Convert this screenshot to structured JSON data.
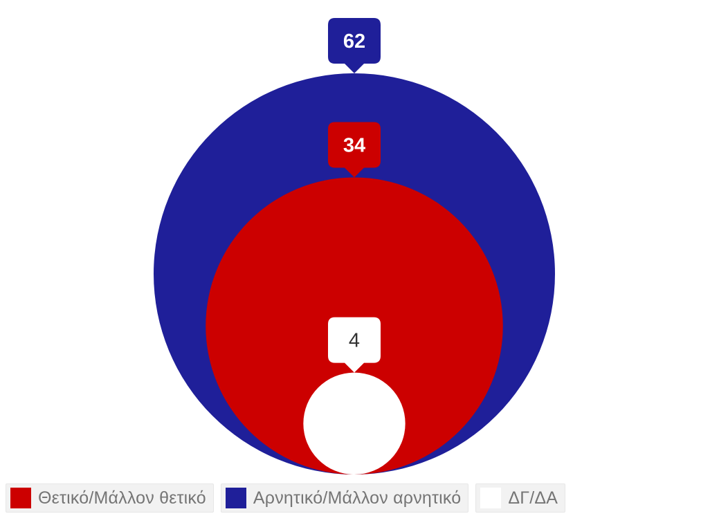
{
  "chart_data": {
    "type": "nested-circles",
    "title": "",
    "series": [
      {
        "name": "Αρνητικό/Μάλλον αρνητικό",
        "value": 62,
        "label": "62",
        "color": "#1f1f99",
        "label_color": "#ffffff"
      },
      {
        "name": "Θετικό/Μάλλον θετικό",
        "value": 34,
        "label": "34",
        "color": "#cc0000",
        "label_color": "#ffffff"
      },
      {
        "name": "ΔΓ/ΔΑ",
        "value": 4,
        "label": "4",
        "color": "#ffffff",
        "label_color": "#333333"
      }
    ],
    "legend": {
      "position": "bottom",
      "items": [
        {
          "label": "Θετικό/Μάλλον θετικό",
          "color": "#cc0000"
        },
        {
          "label": "Αρνητικό/Μάλλον αρνητικό",
          "color": "#1f1f99"
        },
        {
          "label": "ΔΓ/ΔΑ",
          "color": "#ffffff"
        }
      ]
    }
  }
}
